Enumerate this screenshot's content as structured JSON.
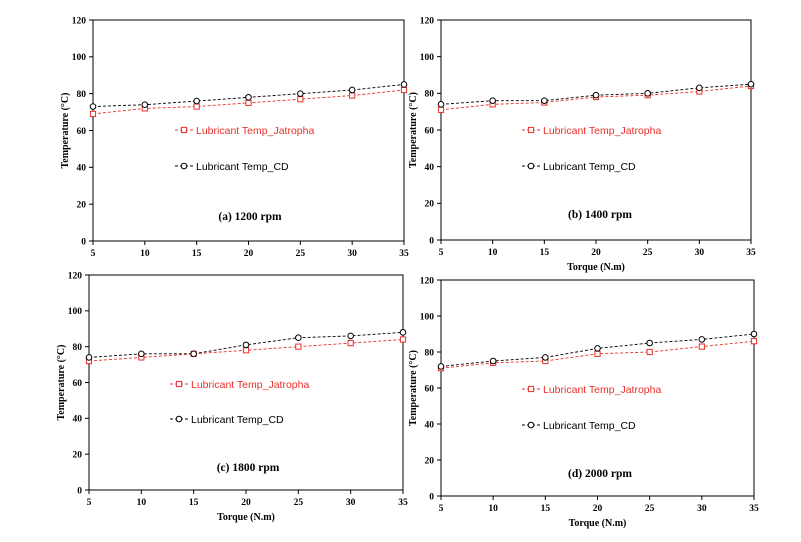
{
  "chart_data": [
    {
      "type": "line",
      "annotation": "(a) 1200 rpm",
      "xlabel": "",
      "ylabel": "Temperature (°C)",
      "x": [
        5,
        10,
        15,
        20,
        25,
        30,
        35
      ],
      "xlim": [
        5,
        35
      ],
      "ylim": [
        0,
        120
      ],
      "yticks": [
        0,
        20,
        40,
        60,
        80,
        100,
        120
      ],
      "legend_position": "center",
      "series": [
        {
          "name": "Lubricant Temp_Jatropha",
          "color": "#e8302a",
          "marker": "square",
          "values": [
            69,
            72,
            73,
            75,
            77,
            79,
            82
          ]
        },
        {
          "name": "Lubricant Temp_CD",
          "color": "#000000",
          "marker": "circle",
          "values": [
            73,
            74,
            76,
            78,
            80,
            82,
            85
          ]
        }
      ]
    },
    {
      "type": "line",
      "annotation": "(b) 1400 rpm",
      "xlabel": "Torque (N.m)",
      "ylabel": "Temperature (°C)",
      "x": [
        5,
        10,
        15,
        20,
        25,
        30,
        35
      ],
      "xlim": [
        5,
        35
      ],
      "ylim": [
        0,
        120
      ],
      "yticks": [
        0,
        20,
        40,
        60,
        80,
        100,
        120
      ],
      "legend_position": "center",
      "series": [
        {
          "name": "Lubricant Temp_Jatropha",
          "color": "#e8302a",
          "marker": "square",
          "values": [
            71,
            74,
            75,
            78,
            79,
            81,
            84
          ]
        },
        {
          "name": "Lubricant Temp_CD",
          "color": "#000000",
          "marker": "circle",
          "values": [
            74,
            76,
            76,
            79,
            80,
            83,
            85
          ]
        }
      ]
    },
    {
      "type": "line",
      "annotation": "(c) 1800 rpm",
      "xlabel": "Torque (N.m)",
      "ylabel": "Temperature (°C)",
      "x": [
        5,
        10,
        15,
        20,
        25,
        30,
        35
      ],
      "xlim": [
        5,
        35
      ],
      "ylim": [
        0,
        120
      ],
      "yticks": [
        0,
        20,
        40,
        60,
        80,
        100,
        120
      ],
      "legend_position": "center",
      "series": [
        {
          "name": "Lubricant Temp_Jatropha",
          "color": "#e8302a",
          "marker": "square",
          "values": [
            72,
            74,
            76,
            78,
            80,
            82,
            84
          ]
        },
        {
          "name": "Lubricant Temp_CD",
          "color": "#000000",
          "marker": "circle",
          "values": [
            74,
            76,
            76,
            81,
            85,
            86,
            88
          ]
        }
      ]
    },
    {
      "type": "line",
      "annotation": "(d) 2000 rpm",
      "xlabel": "Torque (N.m)",
      "ylabel": "Temperature (°C)",
      "x": [
        5,
        10,
        15,
        20,
        25,
        30,
        35
      ],
      "xlim": [
        5,
        35
      ],
      "ylim": [
        0,
        120
      ],
      "yticks": [
        0,
        20,
        40,
        60,
        80,
        100,
        120
      ],
      "legend_position": "center",
      "series": [
        {
          "name": "Lubricant Temp_Jatropha",
          "color": "#e8302a",
          "marker": "square",
          "values": [
            71,
            74,
            75,
            79,
            80,
            83,
            86
          ]
        },
        {
          "name": "Lubricant Temp_CD",
          "color": "#000000",
          "marker": "circle",
          "values": [
            72,
            75,
            77,
            82,
            85,
            87,
            90
          ]
        }
      ]
    }
  ]
}
